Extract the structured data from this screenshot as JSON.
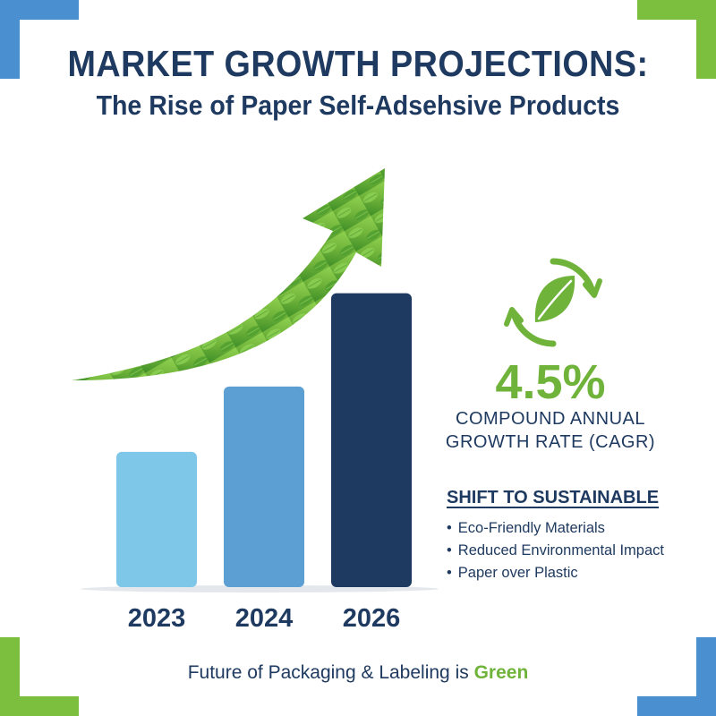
{
  "header": {
    "title": "MARKET GROWTH PROJECTIONS:",
    "subtitle": "The Rise of Paper Self-Adsehsive Products"
  },
  "chart_data": {
    "type": "bar",
    "categories": [
      "2023",
      "2024",
      "2026"
    ],
    "values": [
      145,
      215,
      315
    ],
    "colors": [
      "#7ec7e8",
      "#5b9fd3",
      "#1f3a60"
    ],
    "ylim": [
      0,
      330
    ],
    "grid": false,
    "title": "",
    "xlabel": "",
    "ylabel": ""
  },
  "cagr": {
    "value": "4.5%",
    "label_line1": "COMPOUND ANNUAL",
    "label_line2": "GROWTH RATE (CAGR)",
    "icon": "leaf-recycle-icon"
  },
  "sustainability": {
    "heading": "SHIFT TO SUSTAINABLE",
    "items": [
      "Eco-Friendly Materials",
      "Reduced Environmental Impact",
      "Paper over Plastic"
    ]
  },
  "footer": {
    "text": "Future of Packaging & Labeling is",
    "highlight": "Green"
  },
  "colors": {
    "navy": "#1f3a60",
    "green": "#6fb33a",
    "corner_blue": "#4a8fd0",
    "corner_green": "#7cbf3f"
  }
}
